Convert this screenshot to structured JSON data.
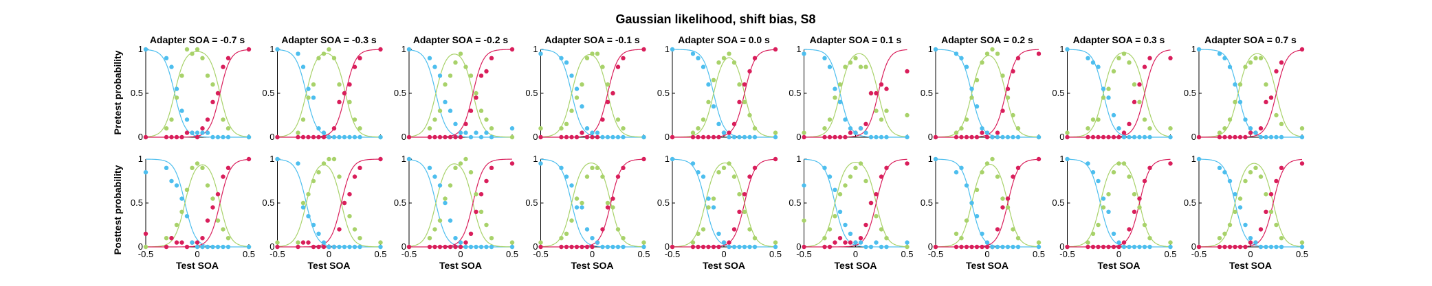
{
  "figure_title": "Gaussian likelihood, shift bias, S8",
  "colors": {
    "blue": "#4dbeee",
    "green": "#a8d26a",
    "red": "#d91e5b",
    "axis": "#000000"
  },
  "chart_data": {
    "type": "scatter",
    "title": "Gaussian likelihood, shift bias, S8",
    "layout": "2 rows x 9 columns",
    "xlabel": "Test SOA",
    "row_ylabels": [
      "Pretest probability",
      "Posttest probability"
    ],
    "xlim": [
      -0.5,
      0.5
    ],
    "ylim": [
      0,
      1
    ],
    "xticks": [
      -0.5,
      0,
      0.5
    ],
    "xtick_labels": [
      "-0.5",
      "0",
      "0.5"
    ],
    "yticks": [
      0,
      0.5,
      1
    ],
    "ytick_labels": [
      "0",
      "0.5",
      "1"
    ],
    "grid": false,
    "legend": "none",
    "series_colors": [
      "#4dbeee",
      "#a8d26a",
      "#d91e5b"
    ],
    "x": [
      -0.5,
      -0.3,
      -0.25,
      -0.2,
      -0.15,
      -0.1,
      -0.05,
      0,
      0.05,
      0.1,
      0.15,
      0.2,
      0.25,
      0.3,
      0.5
    ],
    "panel_titles": [
      "Adapter SOA = -0.7 s",
      "Adapter SOA = -0.3 s",
      "Adapter SOA = -0.2 s",
      "Adapter SOA = -0.1 s",
      "Adapter SOA = 0.0 s",
      "Adapter SOA = 0.1 s",
      "Adapter SOA = 0.2 s",
      "Adapter SOA = 0.3 s",
      "Adapter SOA = 0.7 s"
    ],
    "panels": [
      {
        "adapter": -0.7,
        "row": "pretest",
        "blue": [
          1.0,
          0.9,
          0.8,
          0.55,
          0.3,
          0.2,
          0.05,
          0.05,
          0.05,
          0.05,
          0,
          0,
          0,
          0,
          0
        ],
        "green": [
          0,
          0.1,
          0.2,
          0.45,
          0.7,
          1.0,
          0.95,
          1.0,
          0.9,
          0.7,
          0.6,
          0.5,
          0.2,
          0.1,
          0
        ],
        "red": [
          0,
          0,
          0,
          0,
          0,
          0.05,
          0.05,
          0,
          0.1,
          0.2,
          0.4,
          0.5,
          0.8,
          0.9,
          1.0
        ]
      },
      {
        "adapter": -0.3,
        "row": "pretest",
        "blue": [
          1.0,
          0.95,
          0.8,
          0.55,
          0.45,
          0.1,
          0.05,
          0,
          0,
          0,
          0,
          0,
          0,
          0,
          0
        ],
        "green": [
          0,
          0.05,
          0.2,
          0.45,
          0.6,
          0.9,
          0.95,
          1.0,
          0.9,
          0.6,
          0.5,
          0.4,
          0.2,
          0.1,
          0
        ],
        "red": [
          0,
          0,
          0,
          0,
          0,
          0,
          0,
          0,
          0.1,
          0.4,
          0.5,
          0.6,
          0.8,
          0.9,
          1.0
        ]
      },
      {
        "adapter": -0.2,
        "row": "pretest",
        "blue": [
          1.0,
          0.9,
          0.8,
          0.7,
          0.4,
          0.3,
          0.15,
          0.05,
          0.05,
          0,
          0.05,
          0,
          0.05,
          0,
          0.1
        ],
        "green": [
          0,
          0.1,
          0.2,
          0.3,
          0.6,
          0.7,
          0.85,
          0.95,
          0.8,
          0.7,
          0.5,
          0.3,
          0.2,
          0.1,
          0
        ],
        "red": [
          0,
          0,
          0,
          0,
          0,
          0,
          0,
          0,
          0.15,
          0.3,
          0.45,
          0.7,
          0.75,
          0.9,
          1.0
        ]
      },
      {
        "adapter": -0.1,
        "row": "pretest",
        "blue": [
          0.95,
          0.9,
          0.85,
          0.7,
          0.55,
          0.35,
          0.1,
          0.05,
          0.05,
          0,
          0,
          0,
          0,
          0,
          0
        ],
        "green": [
          0.1,
          0.1,
          0.15,
          0.3,
          0.45,
          0.6,
          0.9,
          0.95,
          0.95,
          0.8,
          0.6,
          0.5,
          0.2,
          0.1,
          0
        ],
        "red": [
          0,
          0,
          0,
          0,
          0,
          0.05,
          0,
          0,
          0,
          0.2,
          0.4,
          0.5,
          0.8,
          0.9,
          1.0
        ]
      },
      {
        "adapter": 0.0,
        "row": "pretest",
        "blue": [
          1.0,
          0.95,
          0.9,
          0.8,
          0.6,
          0.35,
          0.15,
          0.05,
          0,
          0,
          0,
          0,
          0,
          0,
          0
        ],
        "green": [
          0,
          0.05,
          0.1,
          0.2,
          0.4,
          0.65,
          0.85,
          0.9,
          0.95,
          0.85,
          0.6,
          0.4,
          0.25,
          0.1,
          0.05
        ],
        "red": [
          0,
          0,
          0,
          0,
          0,
          0,
          0,
          0.05,
          0.05,
          0.15,
          0.4,
          0.6,
          0.75,
          0.9,
          1.0
        ]
      },
      {
        "adapter": 0.1,
        "row": "pretest",
        "blue": [
          0.95,
          0.9,
          0.8,
          0.55,
          0.4,
          0.2,
          0.1,
          0.05,
          0.1,
          0.05,
          0,
          0,
          0,
          0,
          0
        ],
        "green": [
          0.05,
          0.1,
          0.2,
          0.45,
          0.6,
          0.8,
          0.85,
          0.9,
          0.8,
          0.8,
          0.5,
          0.3,
          0.2,
          0.3,
          0.25
        ],
        "red": [
          0,
          0,
          0,
          0,
          0,
          0,
          0.05,
          0.05,
          0.1,
          0.15,
          0.5,
          0.5,
          0.6,
          0.55,
          0.75
        ]
      },
      {
        "adapter": 0.2,
        "row": "pretest",
        "blue": [
          1.0,
          0.95,
          0.9,
          0.8,
          0.55,
          0.35,
          0.1,
          0.05,
          0,
          0,
          0,
          0,
          0,
          0,
          0
        ],
        "green": [
          0,
          0.05,
          0.1,
          0.2,
          0.45,
          0.65,
          0.85,
          0.95,
          1.0,
          0.95,
          0.7,
          0.45,
          0.25,
          0.1,
          0
        ],
        "red": [
          0,
          0,
          0,
          0,
          0,
          0,
          0.05,
          0,
          0,
          0.05,
          0.3,
          0.55,
          0.75,
          0.9,
          0.95
        ]
      },
      {
        "adapter": 0.3,
        "row": "pretest",
        "blue": [
          1.0,
          0.9,
          0.85,
          0.8,
          0.55,
          0.45,
          0.25,
          0.1,
          0,
          0,
          0,
          0,
          0,
          0,
          0
        ],
        "green": [
          0.05,
          0.1,
          0.2,
          0.2,
          0.45,
          0.55,
          0.75,
          0.9,
          0.95,
          0.85,
          0.6,
          0.4,
          0.2,
          0.1,
          0.1
        ],
        "red": [
          0,
          0,
          0,
          0,
          0,
          0,
          0,
          0,
          0.05,
          0.15,
          0.4,
          0.6,
          0.8,
          0.9,
          0.9
        ]
      },
      {
        "adapter": 0.7,
        "row": "pretest",
        "blue": [
          1.0,
          0.95,
          0.9,
          0.8,
          0.6,
          0.4,
          0.2,
          0.1,
          0.05,
          0,
          0,
          0,
          0,
          0,
          0
        ],
        "green": [
          0,
          0.05,
          0.1,
          0.2,
          0.4,
          0.6,
          0.8,
          0.85,
          0.9,
          0.9,
          0.6,
          0.45,
          0.25,
          0.15,
          0.1
        ],
        "red": [
          0,
          0,
          0,
          0,
          0,
          0,
          0,
          0.05,
          0.05,
          0.1,
          0.4,
          0.45,
          0.75,
          0.85,
          1.0
        ]
      },
      {
        "adapter": -0.7,
        "row": "posttest",
        "blue": [
          0.85,
          0.9,
          0.75,
          0.7,
          0.55,
          0.35,
          0.05,
          0,
          0,
          0,
          0,
          0,
          0,
          0,
          0
        ],
        "green": [
          0,
          0.1,
          0.1,
          0.25,
          0.4,
          0.65,
          0.9,
          0.95,
          0.9,
          0.7,
          0.55,
          0.3,
          0.2,
          0.1,
          0
        ],
        "red": [
          0.15,
          0,
          0.1,
          0.05,
          0.05,
          0,
          0.05,
          0.05,
          0.1,
          0.3,
          0.45,
          0.6,
          0.8,
          0.9,
          1.0
        ]
      },
      {
        "adapter": -0.3,
        "row": "posttest",
        "blue": [
          1.0,
          0.95,
          0.45,
          0.35,
          0.25,
          0.15,
          0.05,
          0,
          0,
          0,
          0,
          0,
          0,
          0,
          0
        ],
        "green": [
          0.05,
          0.05,
          0.5,
          0.6,
          0.75,
          0.85,
          0.95,
          1.0,
          1.0,
          0.8,
          0.5,
          0.35,
          0.2,
          0.1,
          0.05
        ],
        "red": [
          0,
          0,
          0.05,
          0.05,
          0,
          0,
          0,
          0,
          0,
          0.2,
          0.5,
          0.6,
          0.8,
          0.9,
          1.0
        ]
      },
      {
        "adapter": -0.2,
        "row": "posttest",
        "blue": [
          1.0,
          0.9,
          0.8,
          0.7,
          0.5,
          0.3,
          0.1,
          0.05,
          0,
          0,
          0,
          0,
          0,
          0,
          0
        ],
        "green": [
          0,
          0.1,
          0.2,
          0.3,
          0.55,
          0.7,
          0.9,
          0.95,
          1.0,
          0.85,
          0.6,
          0.4,
          0.25,
          0.1,
          0.05
        ],
        "red": [
          0,
          0,
          0,
          0,
          0,
          0,
          0,
          0,
          0.05,
          0.15,
          0.4,
          0.6,
          0.75,
          0.9,
          0.95
        ]
      },
      {
        "adapter": -0.1,
        "row": "posttest",
        "blue": [
          0.95,
          0.9,
          0.8,
          0.7,
          0.45,
          0.45,
          0.2,
          0.1,
          0.05,
          0,
          0,
          0,
          0,
          0,
          0
        ],
        "green": [
          0.05,
          0.1,
          0.15,
          0.3,
          0.55,
          0.5,
          0.8,
          0.9,
          0.9,
          0.8,
          0.5,
          0.45,
          0.2,
          0.1,
          0.05
        ],
        "red": [
          0,
          0,
          0,
          0,
          0,
          0,
          0,
          0,
          0.05,
          0.2,
          0.45,
          0.55,
          0.8,
          0.9,
          1.0
        ]
      },
      {
        "adapter": 0.0,
        "row": "posttest",
        "blue": [
          1.0,
          0.95,
          0.85,
          0.8,
          0.55,
          0.45,
          0.15,
          0.05,
          0,
          0,
          0,
          0,
          0,
          0,
          0
        ],
        "green": [
          0,
          0.05,
          0.15,
          0.2,
          0.45,
          0.55,
          0.85,
          0.9,
          0.95,
          0.8,
          0.6,
          0.4,
          0.2,
          0.1,
          0.05
        ],
        "red": [
          0,
          0,
          0,
          0,
          0,
          0,
          0,
          0.05,
          0.05,
          0.2,
          0.4,
          0.6,
          0.8,
          0.9,
          1.0
        ]
      },
      {
        "adapter": 0.1,
        "row": "posttest",
        "blue": [
          0.7,
          0.9,
          0.8,
          0.65,
          0.4,
          0.25,
          0.15,
          0.05,
          0.05,
          0,
          0,
          0.05,
          0,
          0,
          0.05
        ],
        "green": [
          0.3,
          0.1,
          0.2,
          0.35,
          0.6,
          0.7,
          0.8,
          0.9,
          0.95,
          0.75,
          0.5,
          0.35,
          0.2,
          0.1,
          0
        ],
        "red": [
          0,
          0,
          0,
          0.05,
          0.1,
          0.05,
          0.05,
          0.05,
          0.1,
          0.25,
          0.5,
          0.6,
          0.8,
          0.9,
          0.95
        ]
      },
      {
        "adapter": 0.2,
        "row": "posttest",
        "blue": [
          1.0,
          0.85,
          0.9,
          0.7,
          0.5,
          0.35,
          0.15,
          0.05,
          0,
          0,
          0,
          0,
          0,
          0,
          0
        ],
        "green": [
          0,
          0.15,
          0.1,
          0.3,
          0.5,
          0.65,
          0.85,
          0.95,
          1.0,
          0.8,
          0.55,
          0.45,
          0.2,
          0.1,
          0.05
        ],
        "red": [
          0,
          0,
          0,
          0,
          0,
          0,
          0,
          0,
          0,
          0.2,
          0.45,
          0.55,
          0.8,
          0.9,
          1.0
        ]
      },
      {
        "adapter": 0.3,
        "row": "posttest",
        "blue": [
          1.0,
          0.95,
          0.85,
          0.75,
          0.55,
          0.4,
          0.15,
          0.05,
          0,
          0,
          0,
          0,
          0,
          0,
          0
        ],
        "green": [
          0,
          0.05,
          0.15,
          0.25,
          0.45,
          0.6,
          0.85,
          0.95,
          0.95,
          0.8,
          0.6,
          0.45,
          0.25,
          0.1,
          0.05
        ],
        "red": [
          0,
          0,
          0,
          0,
          0,
          0,
          0,
          0,
          0.05,
          0.2,
          0.4,
          0.55,
          0.75,
          0.9,
          0.95
        ]
      },
      {
        "adapter": 0.7,
        "row": "posttest",
        "blue": [
          1.0,
          0.9,
          0.85,
          0.75,
          0.6,
          0.45,
          0.25,
          0.1,
          0.05,
          0,
          0,
          0,
          0,
          0,
          0
        ],
        "green": [
          0,
          0.1,
          0.15,
          0.25,
          0.4,
          0.55,
          0.75,
          0.85,
          0.9,
          0.8,
          0.6,
          0.4,
          0.25,
          0.1,
          0.05
        ],
        "red": [
          0,
          0,
          0,
          0,
          0,
          0,
          0,
          0.05,
          0.05,
          0.2,
          0.4,
          0.6,
          0.75,
          0.9,
          0.95
        ]
      }
    ],
    "curve_params": {
      "note": "fitted curves: blue = 1 - logistic, red = logistic, green = remainder; per-panel lower/upper boundaries in SOA units",
      "pretest": [
        [
          -0.22,
          0.22
        ],
        [
          -0.22,
          0.16
        ],
        [
          -0.24,
          0.12
        ],
        [
          -0.2,
          0.15
        ],
        [
          -0.1,
          0.2
        ],
        [
          -0.15,
          0.22
        ],
        [
          -0.15,
          0.18
        ],
        [
          -0.15,
          0.25
        ],
        [
          -0.12,
          0.25
        ]
      ],
      "posttest": [
        [
          -0.12,
          0.22
        ],
        [
          -0.22,
          0.12
        ],
        [
          -0.24,
          0.12
        ],
        [
          -0.2,
          0.18
        ],
        [
          -0.18,
          0.2
        ],
        [
          -0.2,
          0.2
        ],
        [
          -0.15,
          0.2
        ],
        [
          -0.18,
          0.2
        ],
        [
          -0.15,
          0.22
        ]
      ],
      "slope": 0.05
    }
  }
}
